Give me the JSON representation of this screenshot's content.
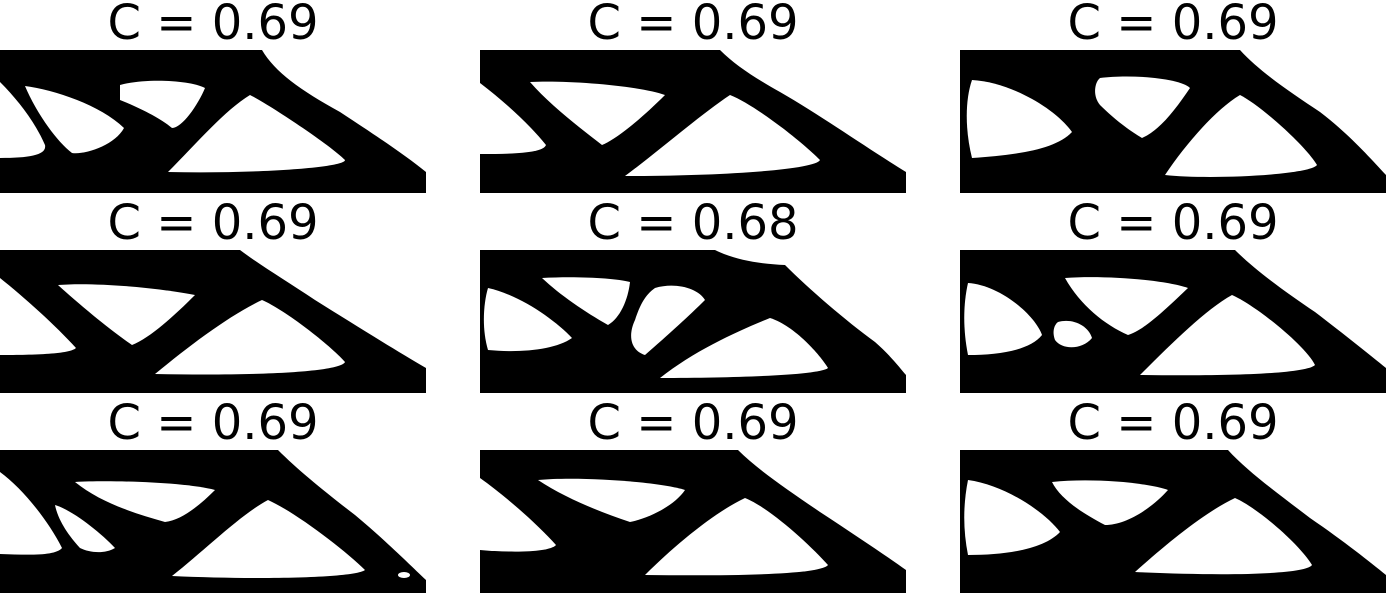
{
  "panels": [
    {
      "title": "C = 0.69"
    },
    {
      "title": "C = 0.69"
    },
    {
      "title": "C = 0.69"
    },
    {
      "title": "C = 0.69"
    },
    {
      "title": "C = 0.68"
    },
    {
      "title": "C = 0.69"
    },
    {
      "title": "C = 0.69"
    },
    {
      "title": "C = 0.69"
    },
    {
      "title": "C = 0.69"
    }
  ],
  "colors": {
    "material": "#000000",
    "void": "#ffffff"
  }
}
